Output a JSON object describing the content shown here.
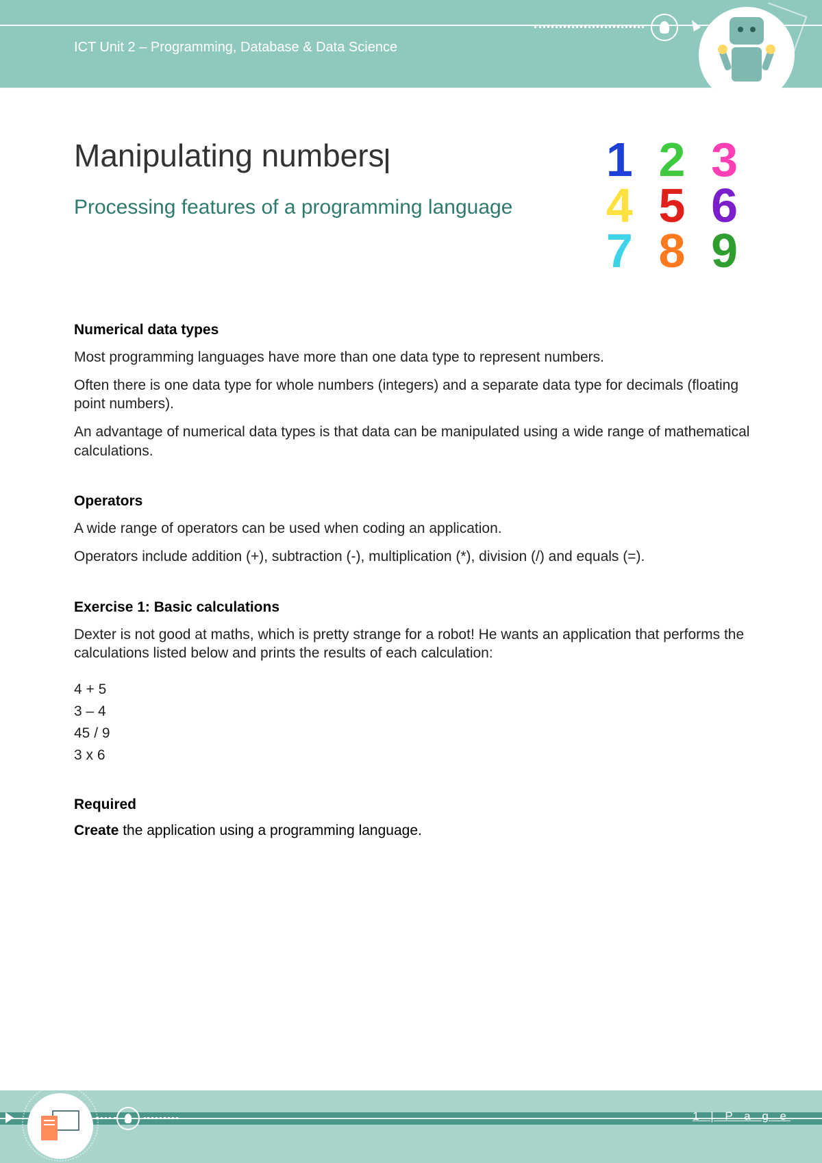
{
  "header": {
    "unit_text": "ICT Unit 2 – Programming, Database & Data Science"
  },
  "title": {
    "main": "Manipulating numbers",
    "subtitle": "Processing features of a programming language"
  },
  "number_grid": {
    "rows": [
      {
        "digits": [
          "1",
          "2",
          "3"
        ],
        "colors": [
          "#1e3fd8",
          "#3fc93f",
          "#ff3fb3"
        ]
      },
      {
        "digits": [
          "4",
          "5",
          "6"
        ],
        "colors": [
          "#ffe23f",
          "#e0201b",
          "#7a1fc9"
        ]
      },
      {
        "digits": [
          "7",
          "8",
          "9"
        ],
        "colors": [
          "#3fd3e8",
          "#ff7a1f",
          "#2f9e2f"
        ]
      }
    ]
  },
  "sections": {
    "s1": {
      "heading": "Numerical data types",
      "p1": "Most programming languages have more than one data type to represent numbers.",
      "p2": "Often there is one data type for whole numbers (integers) and a separate data type for decimals (floating point numbers).",
      "p3": "An advantage of numerical data types is that data can be manipulated using a wide range of mathematical calculations."
    },
    "s2": {
      "heading": "Operators",
      "p1": "A wide range of operators can be used when coding an application.",
      "p2": "Operators include addition (+), subtraction (-), multiplication (*), division (/) and equals (=)."
    },
    "s3": {
      "heading": "Exercise 1: Basic calculations",
      "p1": "Dexter is not good at maths, which is pretty strange for a robot! He wants an application that performs the calculations listed below and prints the results of each calculation:",
      "calcs": [
        "4 + 5",
        "3 – 4",
        "45 / 9",
        "3 x 6"
      ]
    },
    "s4": {
      "heading": "Required",
      "create_bold": "Create",
      "create_rest": " the application using a programming language."
    }
  },
  "footer": {
    "page": "1 | P a g e"
  },
  "colors": {
    "header_bg": "#8fc9bd",
    "footer_bg": "#a8d4cb",
    "subtitle": "#2f7a6e",
    "footer_dark": "#4a9688"
  }
}
